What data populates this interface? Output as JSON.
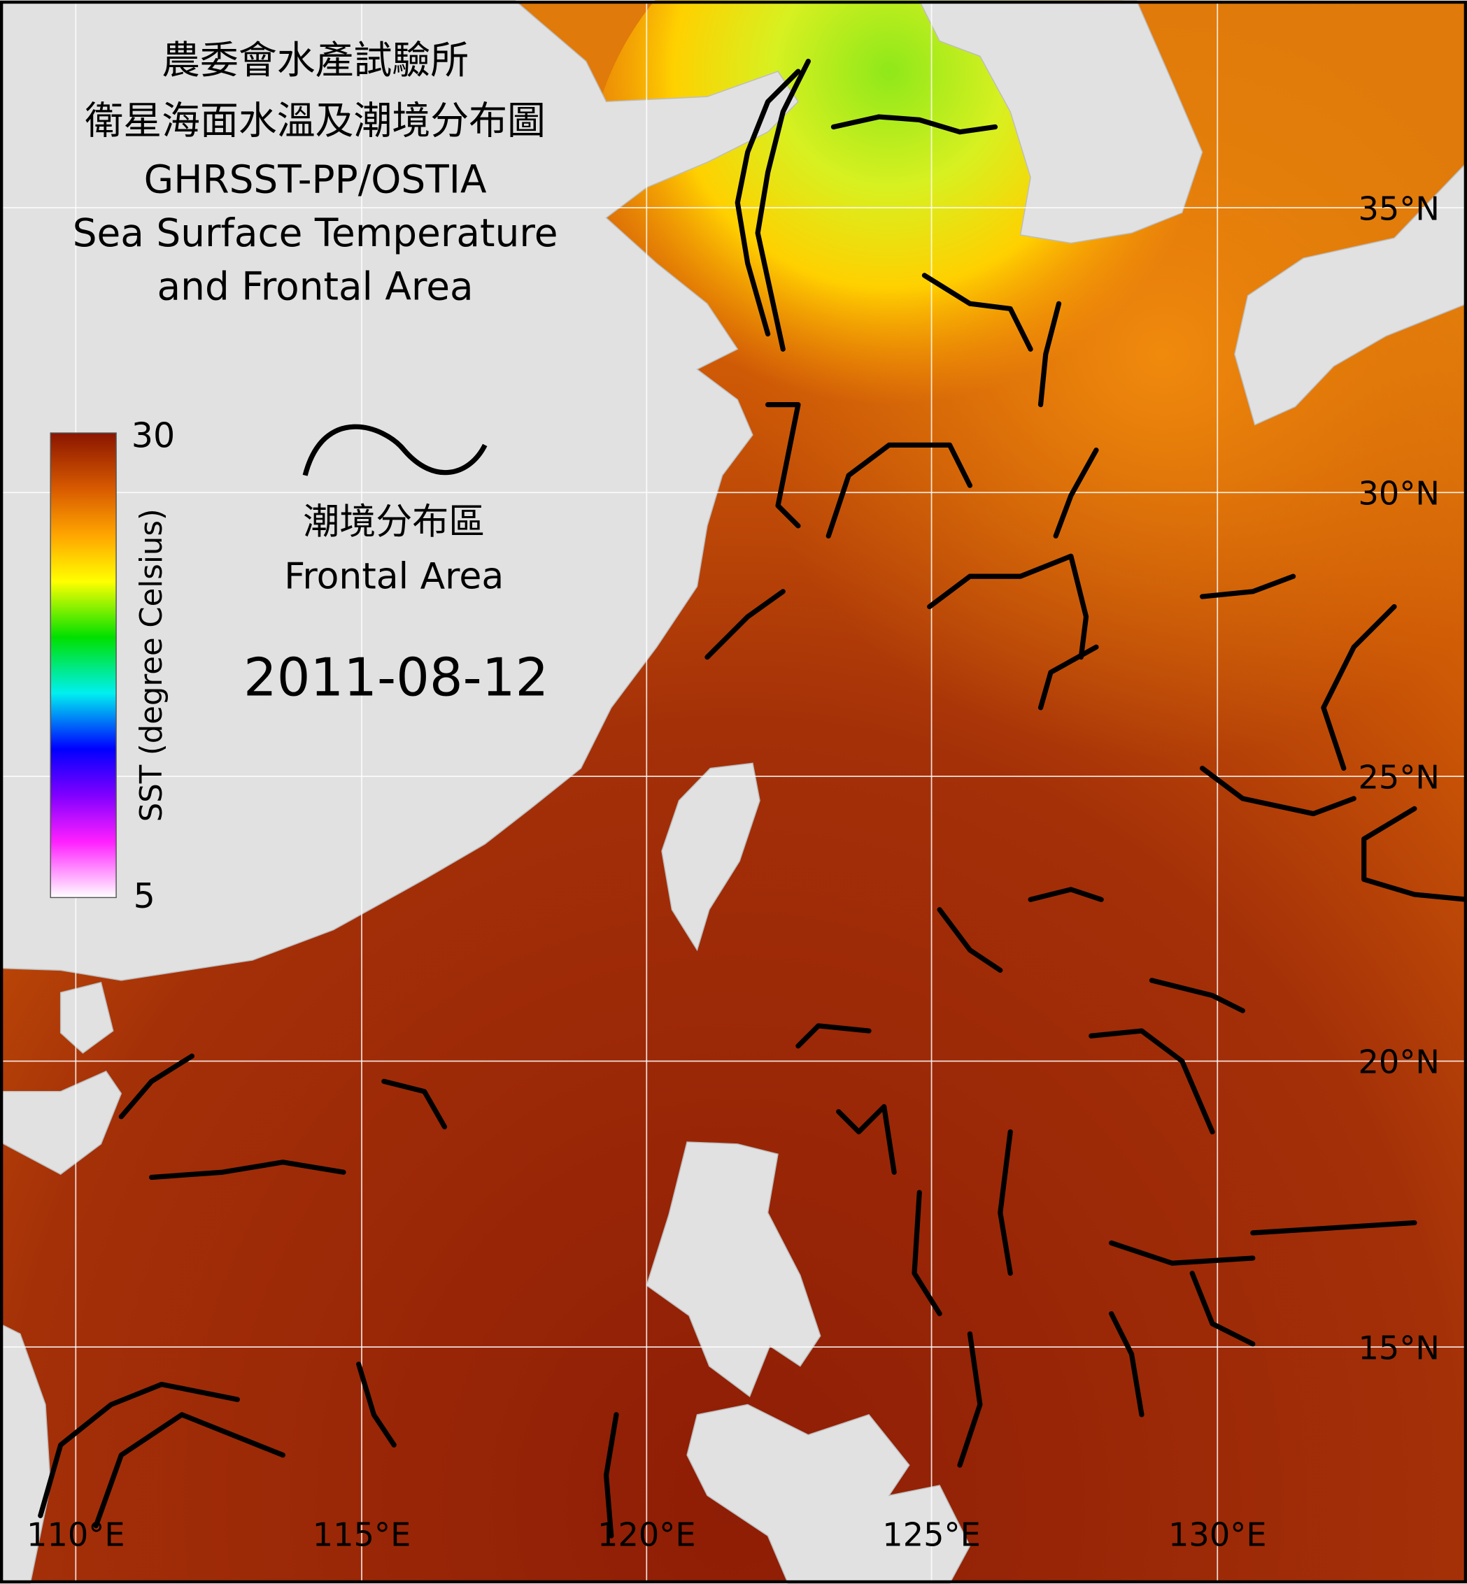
{
  "title": {
    "lines": [
      "農委會水產試驗所",
      "衛星海面水溫及潮境分布圖",
      "GHRSST-PP/OSTIA",
      "Sea Surface Temperature",
      "and Frontal Area"
    ]
  },
  "legend": {
    "colorbar": {
      "label": "SST (degree Celsius)",
      "max": 30,
      "min": 5
    },
    "frontal_label_zh": "潮境分布區",
    "frontal_label_en": "Frontal Area"
  },
  "date": "2011-08-12",
  "grid": {
    "latitudes": [
      "35°N",
      "30°N",
      "25°N",
      "20°N",
      "15°N"
    ],
    "longitudes": [
      "110°E",
      "115°E",
      "120°E",
      "125°E",
      "130°E"
    ]
  }
}
